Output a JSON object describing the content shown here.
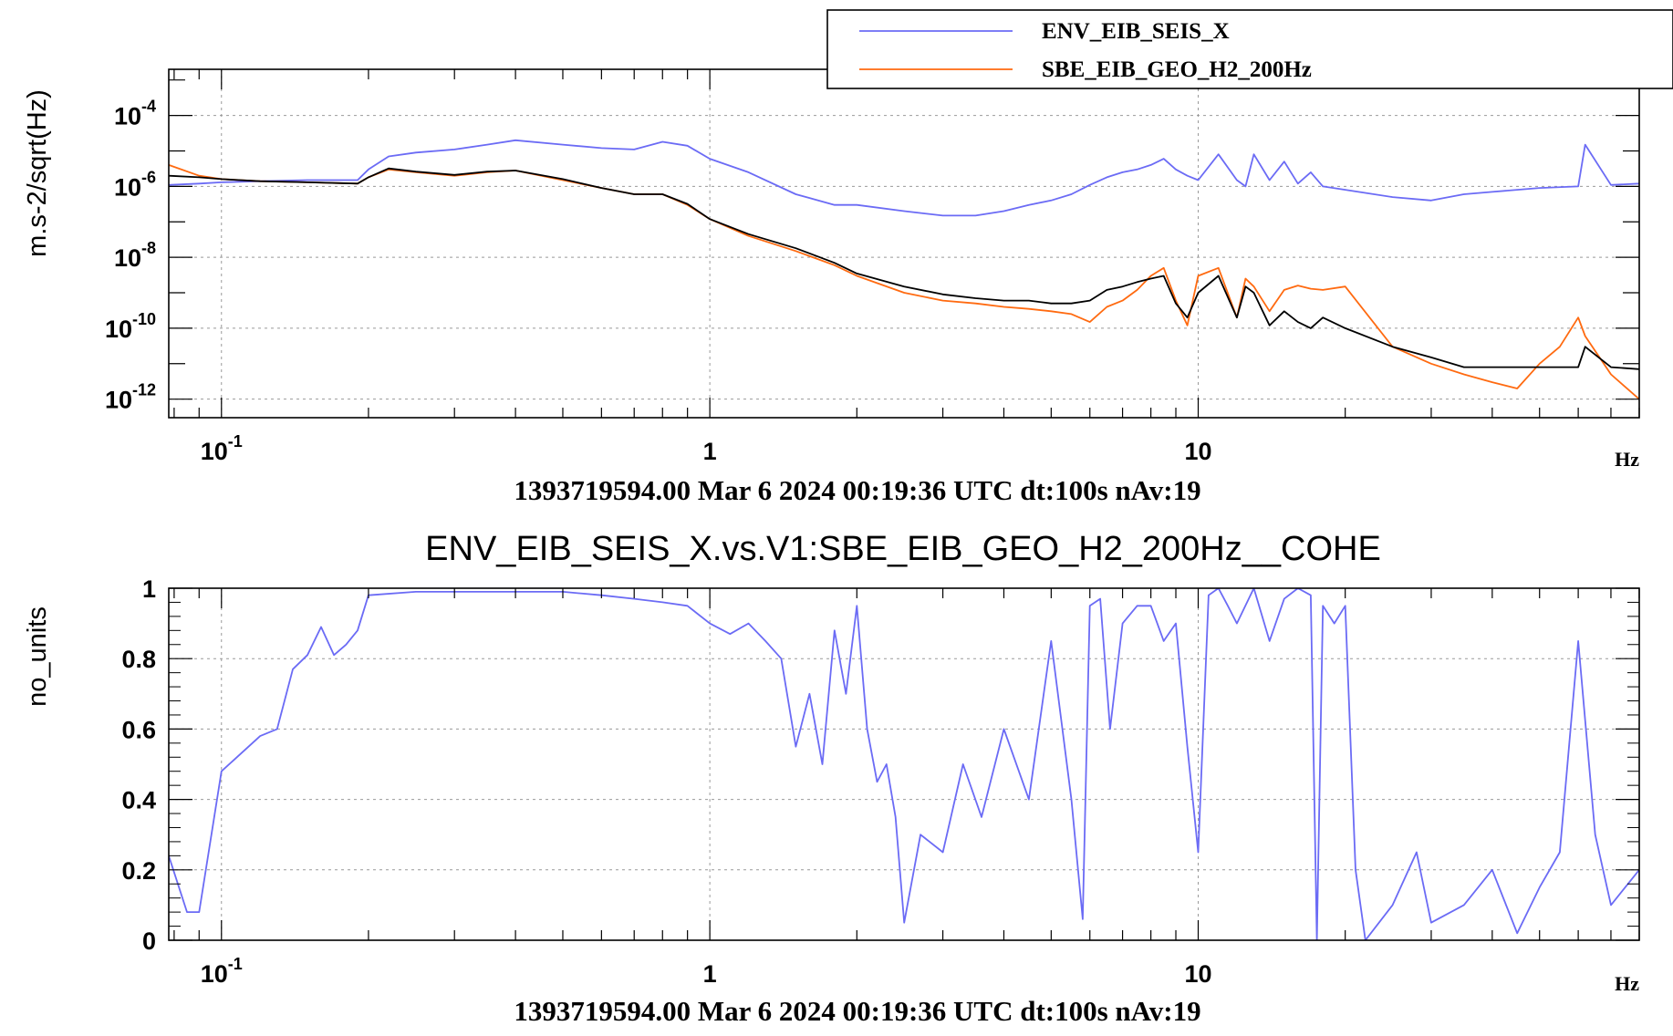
{
  "chart_data": [
    {
      "type": "line",
      "title": "",
      "xlabel": "Hz",
      "ylabel": "m.s-2/sqrt(Hz)",
      "x_scale": "log",
      "y_scale": "log",
      "xlim": [
        0.078,
        80
      ],
      "ylim": [
        3e-13,
        0.002
      ],
      "x_ticks": [
        {
          "value": 0.1,
          "base": "10",
          "exp": "-1"
        },
        {
          "value": 1,
          "base": "1",
          "exp": ""
        },
        {
          "value": 10,
          "base": "10",
          "exp": ""
        }
      ],
      "y_ticks": [
        {
          "value": 0.0001,
          "base": "10",
          "exp": "-4"
        },
        {
          "value": 1e-06,
          "base": "10",
          "exp": "-6"
        },
        {
          "value": 1e-08,
          "base": "10",
          "exp": "-8"
        },
        {
          "value": 1e-10,
          "base": "10",
          "exp": "-10"
        },
        {
          "value": 1e-12,
          "base": "10",
          "exp": "-12"
        }
      ],
      "grid": true,
      "legend_position": "top-right",
      "timestamp": "1393719594.00 Mar 6 2024 00:19:36 UTC dt:100s nAv:19",
      "series": [
        {
          "name": "ENV_EIB_SEIS_X",
          "color": "#6b6bf5",
          "x": [
            0.078,
            0.09,
            0.1,
            0.12,
            0.15,
            0.19,
            0.2,
            0.22,
            0.25,
            0.3,
            0.35,
            0.4,
            0.5,
            0.6,
            0.7,
            0.8,
            0.9,
            1.0,
            1.2,
            1.5,
            1.8,
            2.0,
            2.5,
            3.0,
            3.5,
            4.0,
            4.5,
            5.0,
            5.5,
            6.0,
            6.5,
            7.0,
            7.5,
            8.0,
            8.5,
            9.0,
            9.5,
            10.0,
            11.0,
            12.0,
            12.5,
            13.0,
            14.0,
            15.0,
            16.0,
            17.0,
            18.0,
            20.0,
            25.0,
            30.0,
            35.0,
            40.0,
            50.0,
            60.0,
            62.0,
            70.0,
            80.0
          ],
          "y": [
            1.1e-06,
            1.2e-06,
            1.3e-06,
            1.4e-06,
            1.5e-06,
            1.5e-06,
            3e-06,
            7e-06,
            9e-06,
            1.1e-05,
            1.5e-05,
            2e-05,
            1.5e-05,
            1.2e-05,
            1.1e-05,
            1.8e-05,
            1.4e-05,
            6e-06,
            2.5e-06,
            6e-07,
            3e-07,
            3e-07,
            2e-07,
            1.5e-07,
            1.5e-07,
            2e-07,
            3e-07,
            4e-07,
            6e-07,
            1.1e-06,
            1.8e-06,
            2.5e-06,
            3e-06,
            4e-06,
            6e-06,
            3e-06,
            2e-06,
            1.5e-06,
            8e-06,
            1.5e-06,
            1e-06,
            8e-06,
            1.5e-06,
            5e-06,
            1.2e-06,
            2.5e-06,
            1e-06,
            8e-07,
            5e-07,
            4e-07,
            6e-07,
            7e-07,
            9e-07,
            1e-06,
            1.5e-05,
            1.1e-06,
            1.2e-06
          ]
        },
        {
          "name": "SBE_EIB_GEO_H2_200Hz",
          "color": "#ff6a10",
          "x": [
            0.078,
            0.09,
            0.1,
            0.12,
            0.15,
            0.19,
            0.2,
            0.22,
            0.25,
            0.3,
            0.35,
            0.4,
            0.5,
            0.6,
            0.7,
            0.8,
            0.9,
            1.0,
            1.2,
            1.5,
            1.8,
            2.0,
            2.5,
            3.0,
            3.5,
            4.0,
            4.5,
            5.0,
            5.5,
            6.0,
            6.5,
            7.0,
            7.5,
            8.0,
            8.5,
            9.0,
            9.5,
            10.0,
            11.0,
            12.0,
            12.5,
            13.0,
            14.0,
            15.0,
            16.0,
            17.0,
            18.0,
            20.0,
            25.0,
            30.0,
            35.0,
            40.0,
            45.0,
            50.0,
            55.0,
            60.0,
            62.0,
            70.0,
            80.0
          ],
          "y": [
            4e-06,
            2e-06,
            1.6e-06,
            1.4e-06,
            1.3e-06,
            1.2e-06,
            1.8e-06,
            3e-06,
            2.5e-06,
            2e-06,
            2.5e-06,
            2.8e-06,
            1.5e-06,
            9e-07,
            6e-07,
            6e-07,
            3e-07,
            1.2e-07,
            4e-08,
            1.5e-08,
            6e-09,
            3e-09,
            1e-09,
            6e-10,
            5e-10,
            4e-10,
            3.5e-10,
            3e-10,
            2.5e-10,
            1.5e-10,
            4e-10,
            6e-10,
            1.2e-09,
            3e-09,
            5e-09,
            6e-10,
            1.2e-10,
            3e-09,
            5e-09,
            2e-10,
            2.5e-09,
            1.5e-09,
            3e-10,
            1.2e-09,
            1.6e-09,
            1.3e-09,
            1.2e-09,
            1.5e-09,
            3e-11,
            1e-11,
            5e-12,
            3e-12,
            2e-12,
            1e-11,
            3e-11,
            2e-10,
            6e-11,
            5e-12,
            1e-12
          ]
        },
        {
          "name": "",
          "color": "#000000",
          "x": [
            0.078,
            0.09,
            0.1,
            0.12,
            0.15,
            0.19,
            0.2,
            0.22,
            0.25,
            0.3,
            0.35,
            0.4,
            0.5,
            0.6,
            0.7,
            0.8,
            0.9,
            1.0,
            1.2,
            1.5,
            1.8,
            2.0,
            2.5,
            3.0,
            3.5,
            4.0,
            4.5,
            5.0,
            5.5,
            6.0,
            6.5,
            7.0,
            7.5,
            8.0,
            8.5,
            9.0,
            9.5,
            10.0,
            11.0,
            12.0,
            12.5,
            13.0,
            14.0,
            15.0,
            16.0,
            17.0,
            18.0,
            20.0,
            25.0,
            30.0,
            35.0,
            40.0,
            50.0,
            60.0,
            62.0,
            70.0,
            80.0
          ],
          "y": [
            2e-06,
            1.8e-06,
            1.6e-06,
            1.4e-06,
            1.3e-06,
            1.2e-06,
            1.8e-06,
            3.2e-06,
            2.6e-06,
            2.1e-06,
            2.6e-06,
            2.8e-06,
            1.6e-06,
            9e-07,
            6e-07,
            6e-07,
            3.2e-07,
            1.2e-07,
            4.5e-08,
            1.8e-08,
            7e-09,
            3.5e-09,
            1.5e-09,
            9e-10,
            7e-10,
            6e-10,
            6e-10,
            5e-10,
            5e-10,
            6e-10,
            1.2e-09,
            1.5e-09,
            2e-09,
            2.5e-09,
            3e-09,
            5e-10,
            2e-10,
            1e-09,
            3e-09,
            2e-10,
            1.5e-09,
            1e-09,
            1.2e-10,
            3e-10,
            1.5e-10,
            1e-10,
            2e-10,
            1e-10,
            3e-11,
            1.5e-11,
            8e-12,
            8e-12,
            8e-12,
            8e-12,
            3e-11,
            8e-12,
            7e-12
          ]
        }
      ]
    },
    {
      "type": "line",
      "title": "ENV_EIB_SEIS_X.vs.V1:SBE_EIB_GEO_H2_200Hz__COHE",
      "xlabel": "Hz",
      "ylabel": "no_units",
      "x_scale": "log",
      "xlim": [
        0.078,
        80
      ],
      "ylim": [
        0,
        1
      ],
      "x_ticks": [
        {
          "value": 0.1,
          "base": "10",
          "exp": "-1"
        },
        {
          "value": 1,
          "base": "1",
          "exp": ""
        },
        {
          "value": 10,
          "base": "10",
          "exp": ""
        }
      ],
      "y_ticks": [
        {
          "value": 0,
          "label": "0"
        },
        {
          "value": 0.2,
          "label": "0.2"
        },
        {
          "value": 0.4,
          "label": "0.4"
        },
        {
          "value": 0.6,
          "label": "0.6"
        },
        {
          "value": 0.8,
          "label": "0.8"
        },
        {
          "value": 1,
          "label": "1"
        }
      ],
      "grid": true,
      "timestamp": "1393719594.00 Mar 6 2024 00:19:36 UTC dt:100s nAv:19",
      "series": [
        {
          "name": "",
          "color": "#6b6bf5",
          "x": [
            0.078,
            0.085,
            0.09,
            0.1,
            0.12,
            0.13,
            0.14,
            0.15,
            0.16,
            0.17,
            0.18,
            0.19,
            0.2,
            0.25,
            0.3,
            0.4,
            0.5,
            0.6,
            0.7,
            0.8,
            0.9,
            1.0,
            1.1,
            1.2,
            1.3,
            1.4,
            1.5,
            1.6,
            1.7,
            1.8,
            1.9,
            2.0,
            2.1,
            2.2,
            2.3,
            2.4,
            2.5,
            2.7,
            3.0,
            3.3,
            3.6,
            4.0,
            4.5,
            5.0,
            5.5,
            5.8,
            6.0,
            6.3,
            6.6,
            7.0,
            7.5,
            8.0,
            8.5,
            9.0,
            9.5,
            10.0,
            10.5,
            11.0,
            11.5,
            12.0,
            13.0,
            14.0,
            15.0,
            16.0,
            17.0,
            17.5,
            18.0,
            19.0,
            20.0,
            21.0,
            22.0,
            25.0,
            28.0,
            30.0,
            35.0,
            40.0,
            45.0,
            50.0,
            55.0,
            60.0,
            65.0,
            70.0,
            80.0
          ],
          "y": [
            0.24,
            0.08,
            0.08,
            0.48,
            0.58,
            0.6,
            0.77,
            0.81,
            0.89,
            0.81,
            0.84,
            0.88,
            0.98,
            0.99,
            0.99,
            0.99,
            0.99,
            0.98,
            0.97,
            0.96,
            0.95,
            0.9,
            0.87,
            0.9,
            0.85,
            0.8,
            0.55,
            0.7,
            0.5,
            0.88,
            0.7,
            0.95,
            0.6,
            0.45,
            0.5,
            0.35,
            0.05,
            0.3,
            0.25,
            0.5,
            0.35,
            0.6,
            0.4,
            0.85,
            0.4,
            0.06,
            0.95,
            0.97,
            0.6,
            0.9,
            0.95,
            0.95,
            0.85,
            0.9,
            0.55,
            0.25,
            0.98,
            1.0,
            0.95,
            0.9,
            1.0,
            0.85,
            0.97,
            1.0,
            0.98,
            0.0,
            0.95,
            0.9,
            0.95,
            0.2,
            0.0,
            0.1,
            0.25,
            0.05,
            0.1,
            0.2,
            0.02,
            0.15,
            0.25,
            0.85,
            0.3,
            0.1,
            0.2
          ]
        }
      ]
    }
  ]
}
